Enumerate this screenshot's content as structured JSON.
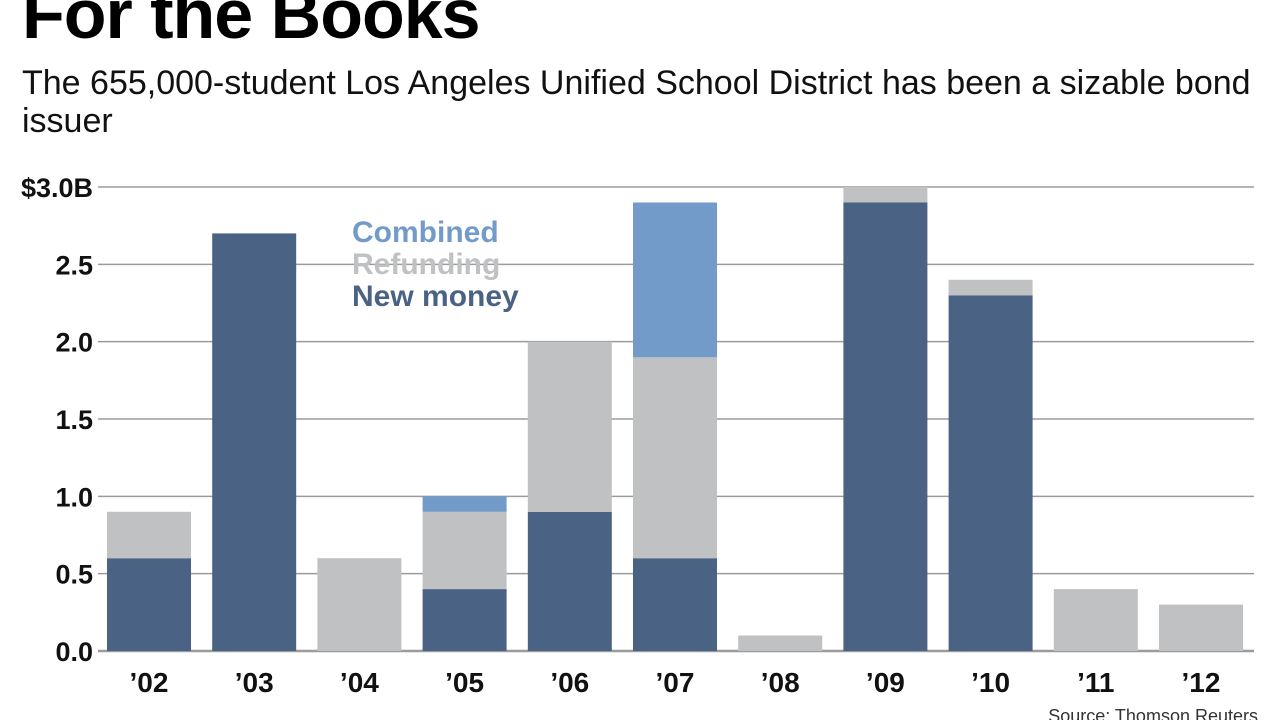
{
  "header": {
    "title": "For the Books",
    "subtitle": "The 655,000-student Los Angeles Unified School District has been a sizable bond issuer"
  },
  "footer": {
    "source": "Source: Thomson Reuters"
  },
  "colors": {
    "new_money": "#4a6384",
    "refunding": "#c0c1c3",
    "combined": "#729bc9",
    "gridline": "#9b9b9b",
    "axis_text": "#111111"
  },
  "chart_data": {
    "type": "bar",
    "stacked": true,
    "categories": [
      "’02",
      "’03",
      "’04",
      "’05",
      "’06",
      "’07",
      "’08",
      "’09",
      "’10",
      "’11",
      "’12"
    ],
    "series": [
      {
        "name": "New money",
        "values": [
          0.6,
          2.7,
          0.0,
          0.4,
          0.9,
          0.6,
          0.0,
          2.9,
          2.3,
          0.0,
          0.0
        ]
      },
      {
        "name": "Refunding",
        "values": [
          0.3,
          0.0,
          0.6,
          0.5,
          1.1,
          1.3,
          0.1,
          0.1,
          0.1,
          0.4,
          0.3
        ]
      },
      {
        "name": "Combined",
        "values": [
          0.0,
          0.0,
          0.0,
          0.1,
          0.0,
          1.0,
          0.0,
          0.0,
          0.0,
          0.0,
          0.0
        ]
      }
    ],
    "legend_order": [
      "Combined",
      "Refunding",
      "New money"
    ],
    "legend_placement": "top-center",
    "ylim": [
      0,
      3.0
    ],
    "yticks": [
      0.0,
      0.5,
      1.0,
      1.5,
      2.0,
      2.5,
      3.0
    ],
    "ytick_labels": [
      "0.0",
      "0.5",
      "1.0",
      "1.5",
      "2.0",
      "2.5",
      "$3.0B"
    ],
    "grid": true,
    "xlabel": "",
    "ylabel": ""
  }
}
